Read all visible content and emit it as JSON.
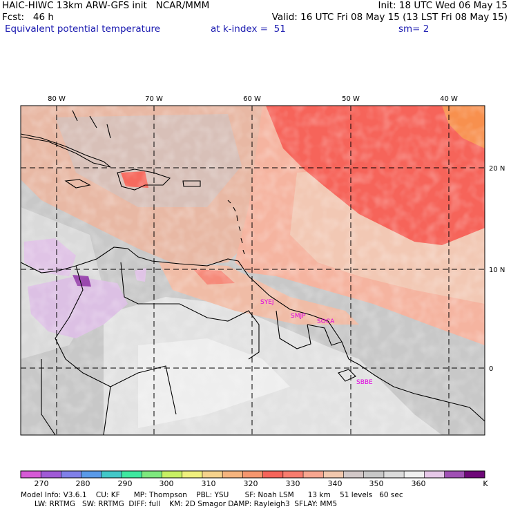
{
  "header": {
    "line1_left": "HAIC-HIWC 13km ARW-GFS init   NCAR/MMM",
    "line1_right": "Init: 18 UTC Wed 06 May 15",
    "line2_left": "Fcst:   46 h",
    "line2_right": "Valid: 16 UTC Fri 08 May 15 (13 LST Fri 08 May 15)",
    "field_name": "Equivalent potential temperature",
    "level": "at k-index =  51",
    "smoothing": "sm= 2"
  },
  "map": {
    "lon_labels": [
      "80 W",
      "70 W",
      "60 W",
      "50 W",
      "40 W"
    ],
    "lat_labels": [
      "20 N",
      "10 N",
      "0"
    ],
    "stations": [
      "SYEJ",
      "SMJP",
      "SOCA",
      "SBBE"
    ]
  },
  "colorbar": {
    "colors": [
      "#d65ad6",
      "#a05ad6",
      "#8080e8",
      "#5a9ae8",
      "#42c8c8",
      "#3ee8a0",
      "#7ee87e",
      "#c8f064",
      "#f0f07e",
      "#f5d28c",
      "#f5b47e",
      "#f5966e",
      "#f5645a",
      "#f87c6e",
      "#f8a690",
      "#f2c8ae",
      "#d2c8c8",
      "#c8c8c8",
      "#dcdcdc",
      "#f0f0f0",
      "#e6c8e8",
      "#a050b4",
      "#6e0878"
    ],
    "ticks": [
      "270",
      "280",
      "290",
      "300",
      "310",
      "320",
      "330",
      "340",
      "350",
      "360"
    ],
    "unit": "K"
  },
  "footer": {
    "line1": "Model Info: V3.6.1    CU: KF      MP: Thompson    PBL: YSU       SF: Noah LSM      13 km    51 levels   60 sec",
    "line2": "      LW: RRTMG   SW: RRTMG  DIFF: full    KM: 2D Smagor DAMP: Rayleigh3  SFLAY: MM5"
  }
}
